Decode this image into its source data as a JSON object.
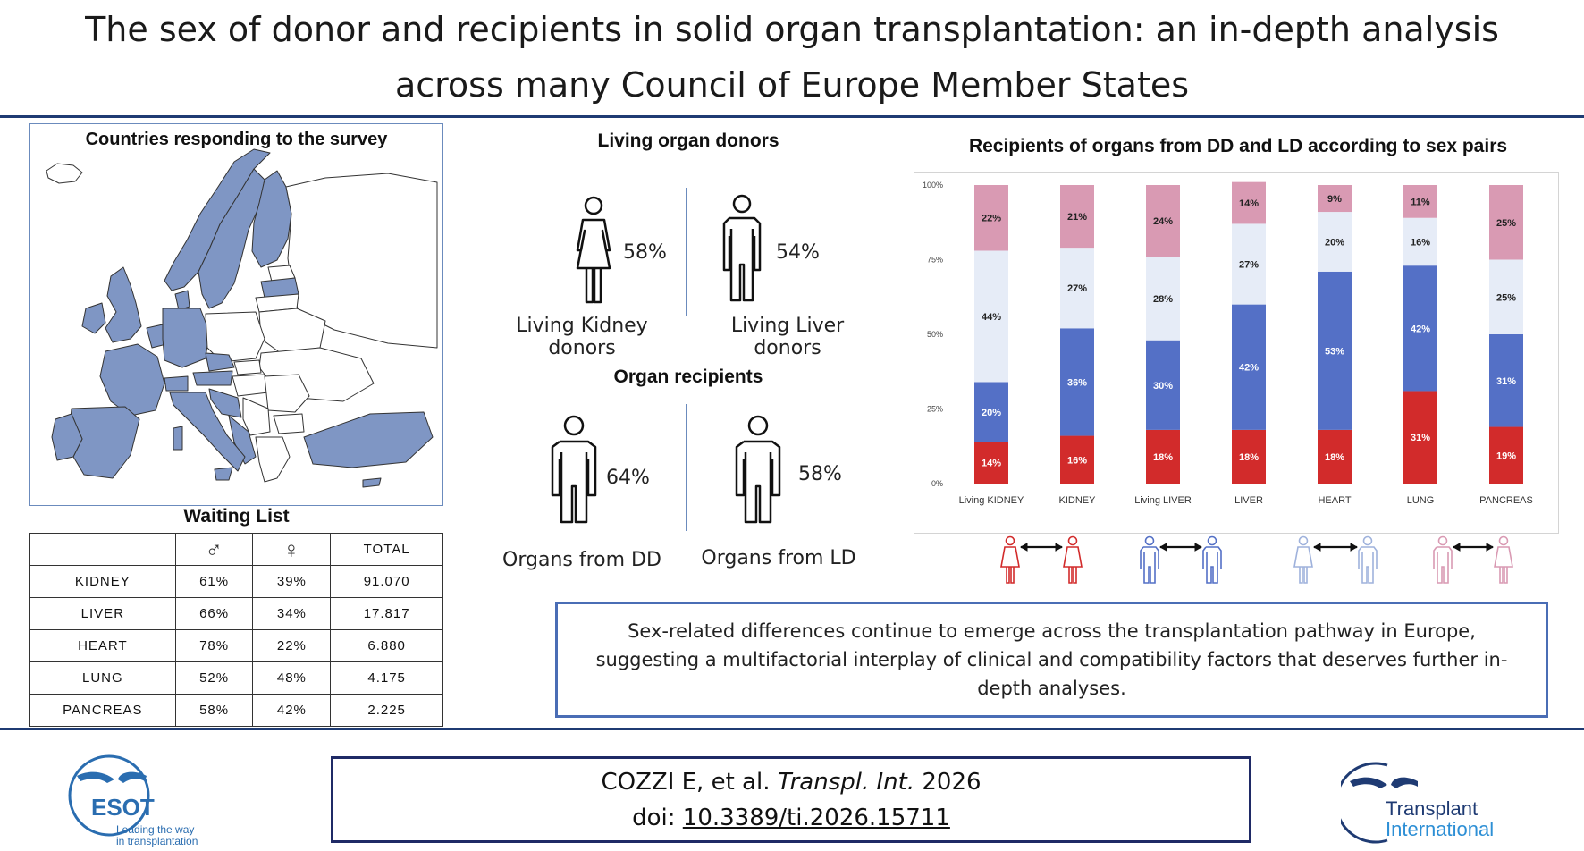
{
  "title": {
    "line1": "The sex of donor and recipients in solid organ transplantation: an in-depth analysis",
    "line2": "across many Council of Europe Member States"
  },
  "map": {
    "title": "Countries responding to the survey",
    "colors": {
      "responding": "#7f96c4",
      "other": "#ffffff",
      "border": "#333333"
    }
  },
  "waiting_list": {
    "title": "Waiting List",
    "headers": [
      "",
      "♂",
      "♀",
      "TOTAL"
    ],
    "rows": [
      [
        "KIDNEY",
        "61%",
        "39%",
        "91.070"
      ],
      [
        "LIVER",
        "66%",
        "34%",
        "17.817"
      ],
      [
        "HEART",
        "78%",
        "22%",
        "6.880"
      ],
      [
        "LUNG",
        "52%",
        "48%",
        "4.175"
      ],
      [
        "PANCREAS",
        "58%",
        "42%",
        "2.225"
      ]
    ]
  },
  "living_donors": {
    "heading": "Living organ donors",
    "kidney": {
      "pct": "58%",
      "label": "Living Kidney donors",
      "icon": "female-person-icon"
    },
    "liver": {
      "pct": "54%",
      "label": "Living Liver donors",
      "icon": "male-person-icon"
    }
  },
  "recipients": {
    "heading": "Organ recipients",
    "dd": {
      "pct": "64%",
      "label": "Organs from DD",
      "icon": "male-person-icon"
    },
    "ld": {
      "pct": "58%",
      "label": "Organs from LD",
      "icon": "male-person-icon"
    }
  },
  "chart_data": {
    "type": "bar",
    "stacked": true,
    "title": "Recipients of organs from DD and LD according to sex pairs",
    "categories": [
      "Living KIDNEY",
      "KIDNEY",
      "Living LIVER",
      "LIVER",
      "HEART",
      "LUNG",
      "PANCREAS"
    ],
    "series": [
      {
        "color": "#d22b2b",
        "values": [
          14,
          16,
          18,
          18,
          18,
          31,
          19
        ]
      },
      {
        "color": "#5470c6",
        "values": [
          20,
          36,
          30,
          42,
          53,
          42,
          31
        ]
      },
      {
        "color": "#e6ecf7",
        "values": [
          44,
          27,
          28,
          27,
          20,
          16,
          25
        ]
      },
      {
        "color": "#d99ab3",
        "values": [
          22,
          21,
          24,
          14,
          9,
          11,
          25
        ]
      }
    ],
    "yticks": [
      "0%",
      "25%",
      "50%",
      "75%",
      "100%"
    ],
    "ylim": [
      0,
      100
    ],
    "grid": false,
    "legend": "icons below chart: female→female (red), male→male (dark blue), female→male (light blue), male→female (pink)"
  },
  "sex_pairs": [
    {
      "name": "female-to-female",
      "color": "#d22b2b"
    },
    {
      "name": "male-to-male",
      "color": "#5470c6"
    },
    {
      "name": "female-to-male",
      "color": "#9fb2dc"
    },
    {
      "name": "male-to-female",
      "color": "#d99ab3"
    }
  ],
  "conclusion": "Sex-related differences continue to emerge across the transplantation pathway in Europe, suggesting a multifactorial interplay of clinical and compatibility factors that deserves further in-depth analyses.",
  "citation": {
    "authors": "COZZI E, et al.",
    "journal": "Transpl. Int.",
    "year": "2026",
    "doi_prefix": "doi: ",
    "doi": "10.3389/ti.2026.15711"
  },
  "logos": {
    "esot": {
      "name": "ESOT",
      "tagline1": "Leading the way",
      "tagline2": "in transplantation"
    },
    "ti": {
      "line1": "Transplant",
      "line2": "International"
    }
  }
}
